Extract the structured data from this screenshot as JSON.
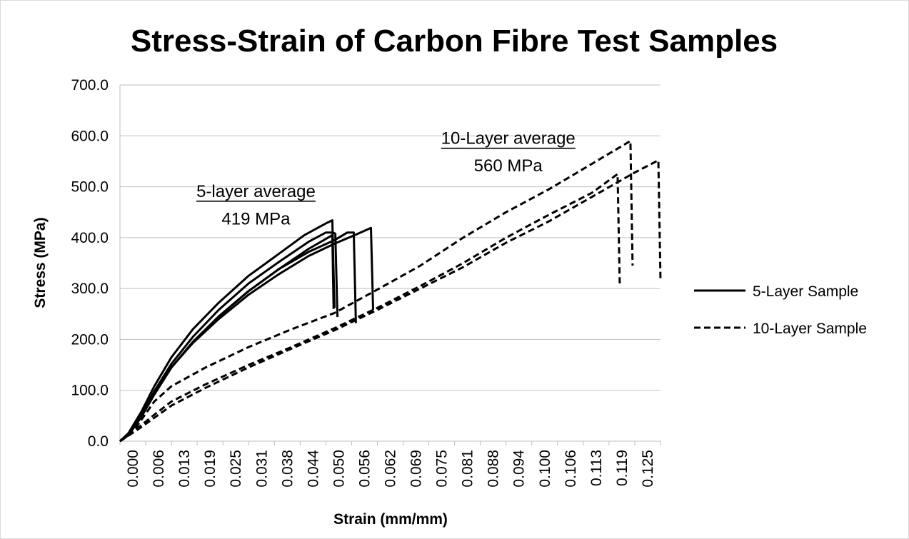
{
  "chart_data": {
    "type": "line",
    "title": "Stress-Strain of Carbon Fibre Test Samples",
    "xlabel": "Strain (mm/mm)",
    "ylabel": "Stress (MPa)",
    "ylim": [
      0,
      700
    ],
    "xlim": [
      0,
      0.126
    ],
    "grid": "horizontal",
    "legend_position": "right",
    "y_ticks": [
      "0.0",
      "100.0",
      "200.0",
      "300.0",
      "400.0",
      "500.0",
      "600.0",
      "700.0"
    ],
    "y_tick_values": [
      0,
      100,
      200,
      300,
      400,
      500,
      600,
      700
    ],
    "x_ticks": [
      "0.000",
      "0.006",
      "0.013",
      "0.019",
      "0.025",
      "0.031",
      "0.038",
      "0.044",
      "0.050",
      "0.056",
      "0.062",
      "0.069",
      "0.075",
      "0.081",
      "0.088",
      "0.094",
      "0.100",
      "0.106",
      "0.113",
      "0.119",
      "0.125"
    ],
    "legend": [
      {
        "label": "5-Layer Sample",
        "style": "solid"
      },
      {
        "label": "10-Layer Sample",
        "style": "dashed"
      }
    ],
    "annotations": [
      {
        "heading": "5-layer average",
        "value": "419 MPa",
        "x": 0.0317,
        "y_heading": 480,
        "y_value": 426
      },
      {
        "heading": "10-Layer average",
        "value": "560 MPa",
        "x": 0.0905,
        "y_heading": 584,
        "y_value": 530
      }
    ],
    "series": [
      {
        "style": "solid",
        "points": [
          [
            0.0,
            0
          ],
          [
            0.002,
            12
          ],
          [
            0.005,
            48
          ],
          [
            0.008,
            92
          ],
          [
            0.012,
            145
          ],
          [
            0.017,
            195
          ],
          [
            0.023,
            245
          ],
          [
            0.03,
            295
          ],
          [
            0.037,
            338
          ],
          [
            0.044,
            378
          ],
          [
            0.0485,
            400
          ],
          [
            0.0495,
            405
          ],
          [
            0.0498,
            260
          ]
        ]
      },
      {
        "style": "solid",
        "points": [
          [
            0.0,
            0
          ],
          [
            0.002,
            14
          ],
          [
            0.005,
            52
          ],
          [
            0.008,
            98
          ],
          [
            0.012,
            152
          ],
          [
            0.017,
            205
          ],
          [
            0.023,
            258
          ],
          [
            0.03,
            310
          ],
          [
            0.037,
            352
          ],
          [
            0.044,
            392
          ],
          [
            0.048,
            410
          ],
          [
            0.0496,
            410
          ],
          [
            0.0502,
            408
          ],
          [
            0.0507,
            244
          ]
        ]
      },
      {
        "style": "solid",
        "points": [
          [
            0.0,
            0
          ],
          [
            0.002,
            16
          ],
          [
            0.005,
            58
          ],
          [
            0.008,
            108
          ],
          [
            0.012,
            165
          ],
          [
            0.017,
            220
          ],
          [
            0.023,
            272
          ],
          [
            0.03,
            325
          ],
          [
            0.037,
            368
          ],
          [
            0.043,
            405
          ],
          [
            0.048,
            428
          ],
          [
            0.0495,
            434
          ],
          [
            0.05,
            262
          ]
        ]
      },
      {
        "style": "solid",
        "points": [
          [
            0.0,
            0
          ],
          [
            0.002,
            12
          ],
          [
            0.005,
            48
          ],
          [
            0.008,
            92
          ],
          [
            0.012,
            145
          ],
          [
            0.017,
            195
          ],
          [
            0.023,
            245
          ],
          [
            0.03,
            295
          ],
          [
            0.037,
            338
          ],
          [
            0.044,
            372
          ],
          [
            0.05,
            395
          ],
          [
            0.053,
            410
          ],
          [
            0.0545,
            410
          ],
          [
            0.055,
            232
          ]
        ]
      },
      {
        "style": "solid",
        "points": [
          [
            0.0,
            0
          ],
          [
            0.002,
            12
          ],
          [
            0.005,
            48
          ],
          [
            0.008,
            92
          ],
          [
            0.012,
            145
          ],
          [
            0.017,
            193
          ],
          [
            0.023,
            240
          ],
          [
            0.03,
            288
          ],
          [
            0.037,
            328
          ],
          [
            0.044,
            364
          ],
          [
            0.05,
            388
          ],
          [
            0.055,
            406
          ],
          [
            0.0585,
            419
          ],
          [
            0.059,
            258
          ]
        ]
      },
      {
        "style": "dashed",
        "points": [
          [
            0.0,
            0
          ],
          [
            0.004,
            30
          ],
          [
            0.008,
            78
          ],
          [
            0.012,
            108
          ],
          [
            0.02,
            145
          ],
          [
            0.03,
            185
          ],
          [
            0.04,
            220
          ],
          [
            0.05,
            252
          ],
          [
            0.06,
            298
          ],
          [
            0.07,
            345
          ],
          [
            0.08,
            400
          ],
          [
            0.09,
            450
          ],
          [
            0.1,
            495
          ],
          [
            0.11,
            545
          ],
          [
            0.118,
            585
          ],
          [
            0.119,
            590
          ],
          [
            0.1195,
            345
          ]
        ]
      },
      {
        "style": "dashed",
        "points": [
          [
            0.0,
            0
          ],
          [
            0.004,
            25
          ],
          [
            0.008,
            52
          ],
          [
            0.012,
            78
          ],
          [
            0.02,
            112
          ],
          [
            0.03,
            150
          ],
          [
            0.04,
            185
          ],
          [
            0.05,
            222
          ],
          [
            0.06,
            262
          ],
          [
            0.07,
            305
          ],
          [
            0.08,
            350
          ],
          [
            0.09,
            400
          ],
          [
            0.1,
            445
          ],
          [
            0.11,
            488
          ],
          [
            0.116,
            525
          ],
          [
            0.1165,
            310
          ]
        ]
      },
      {
        "style": "dashed",
        "points": [
          [
            0.0,
            0
          ],
          [
            0.004,
            22
          ],
          [
            0.008,
            46
          ],
          [
            0.012,
            70
          ],
          [
            0.02,
            105
          ],
          [
            0.03,
            145
          ],
          [
            0.04,
            182
          ],
          [
            0.05,
            218
          ],
          [
            0.06,
            258
          ],
          [
            0.07,
            300
          ],
          [
            0.08,
            342
          ],
          [
            0.09,
            390
          ],
          [
            0.1,
            432
          ],
          [
            0.11,
            480
          ],
          [
            0.12,
            528
          ],
          [
            0.1255,
            552
          ],
          [
            0.126,
            315
          ]
        ]
      }
    ]
  }
}
